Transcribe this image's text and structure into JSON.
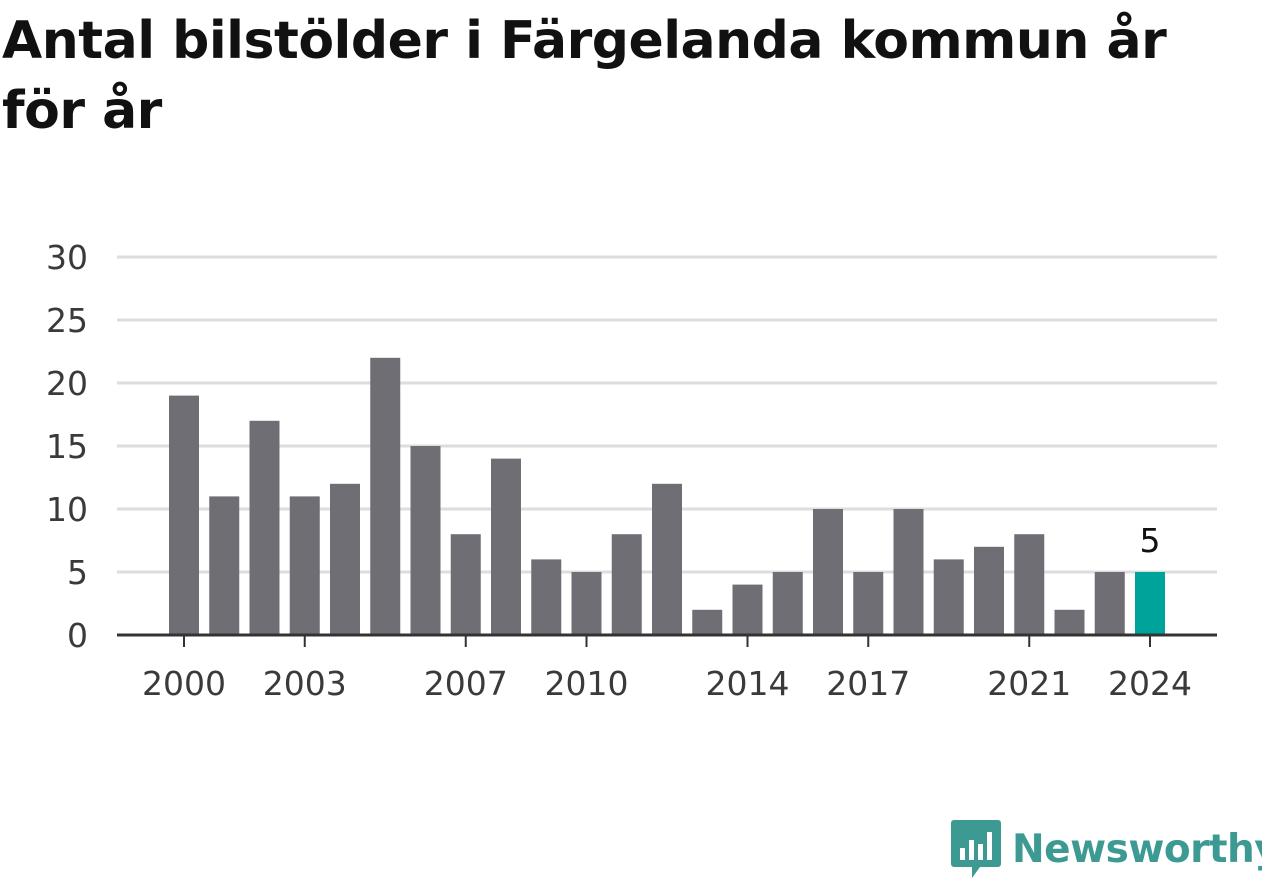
{
  "chart_data": {
    "type": "bar",
    "title": "Antal bilstölder i Färgelanda kommun år för år",
    "xlabel": "",
    "ylabel": "",
    "categories": [
      2000,
      2001,
      2002,
      2003,
      2004,
      2005,
      2006,
      2007,
      2008,
      2009,
      2010,
      2011,
      2012,
      2013,
      2014,
      2015,
      2016,
      2017,
      2018,
      2019,
      2020,
      2021,
      2022,
      2023,
      2024
    ],
    "values": [
      19,
      11,
      17,
      11,
      12,
      22,
      15,
      8,
      14,
      6,
      5,
      8,
      12,
      2,
      4,
      5,
      10,
      5,
      10,
      6,
      7,
      8,
      2,
      5,
      5
    ],
    "x_tick_labels": [
      "2000",
      "2003",
      "2007",
      "2010",
      "2014",
      "2017",
      "2021",
      "2024"
    ],
    "y_ticks": [
      0,
      5,
      10,
      15,
      20,
      25,
      30
    ],
    "ylim": [
      0,
      30
    ],
    "grid": true,
    "legend": "none",
    "highlight": {
      "category": 2024,
      "label": "5"
    },
    "colors": {
      "bar": "#6f6e74",
      "highlight": "#00a39a",
      "grid": "#dddddd",
      "axis": "#333333"
    }
  },
  "branding": {
    "logo_text": "Newsworthy",
    "logo_icon": "bar-chart-speech-bubble-icon",
    "logo_color": "#3d9a93"
  }
}
